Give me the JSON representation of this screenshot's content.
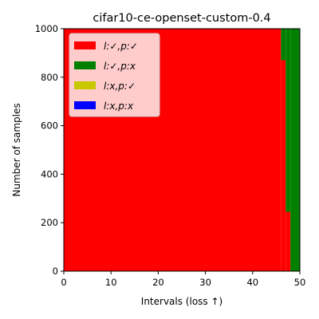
{
  "chart_data": {
    "type": "area",
    "title": "cifar10-ce-openset-custom-0.4",
    "xlabel": "Intervals (loss ↑)",
    "ylabel": "Number of samples",
    "xlim": [
      0,
      50
    ],
    "ylim": [
      0,
      1000
    ],
    "x_ticks": [
      "0",
      "10",
      "20",
      "30",
      "40",
      "50"
    ],
    "y_ticks": [
      "0",
      "200",
      "400",
      "600",
      "800",
      "1000"
    ],
    "legend_position": "upper-left",
    "colors": {
      "correct_label_correct_pred": "#ff0000",
      "correct_label_wrong_pred": "#008000",
      "wrong_label_correct_pred": "#c8c800",
      "wrong_label_wrong_pred": "#0000ff"
    },
    "intervals": [
      {
        "x0": 0,
        "x1": 46,
        "stack": [
          1000,
          0,
          0,
          0
        ]
      },
      {
        "x0": 46,
        "x1": 47,
        "stack": [
          870,
          130,
          0,
          0
        ]
      },
      {
        "x0": 47,
        "x1": 48,
        "stack": [
          245,
          755,
          0,
          0
        ]
      },
      {
        "x0": 48,
        "x1": 50,
        "stack": [
          0,
          1000,
          0,
          0
        ]
      }
    ],
    "series": [
      {
        "name": "l:✓,p:✓",
        "color": "#ff0000"
      },
      {
        "name": "l:✓,p:x",
        "color": "#008000"
      },
      {
        "name": "l:x,p:✓",
        "color": "#c8c800"
      },
      {
        "name": "l:x,p:x",
        "color": "#0000ff"
      }
    ]
  }
}
